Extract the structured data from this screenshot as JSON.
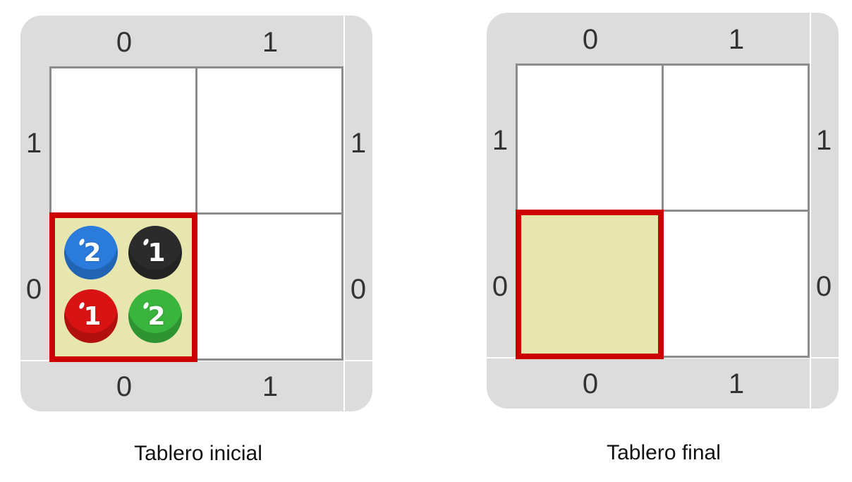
{
  "boards": [
    {
      "id": "initial",
      "caption": "Tablero inicial",
      "col_labels_top": [
        "0",
        "1"
      ],
      "col_labels_bottom": [
        "0",
        "1"
      ],
      "row_labels_left": [
        "1",
        "0"
      ],
      "row_labels_right": [
        "1",
        "0"
      ],
      "head": {
        "col": 0,
        "row": 0
      },
      "balls": [
        {
          "color": "blue",
          "hex": "#2a7bdc",
          "count": "2"
        },
        {
          "color": "black",
          "hex": "#2b2b2b",
          "count": "1"
        },
        {
          "color": "red",
          "hex": "#d91313",
          "count": "1"
        },
        {
          "color": "green",
          "hex": "#39b43c",
          "count": "2"
        }
      ]
    },
    {
      "id": "final",
      "caption": "Tablero final",
      "col_labels_top": [
        "0",
        "1"
      ],
      "col_labels_bottom": [
        "0",
        "1"
      ],
      "row_labels_left": [
        "1",
        "0"
      ],
      "row_labels_right": [
        "1",
        "0"
      ],
      "head": {
        "col": 0,
        "row": 0
      },
      "balls": []
    }
  ],
  "colors": {
    "frame": "#dcdcdc",
    "grid_line": "#8c8c8c",
    "head_border": "#cc0000",
    "head_fill": "#e8e6af"
  }
}
